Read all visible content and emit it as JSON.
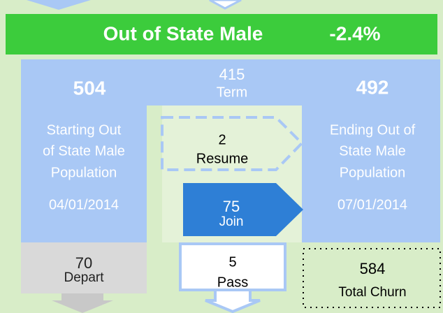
{
  "header": {
    "title": "Out of State Male",
    "change": "-2.4%"
  },
  "start": {
    "value": 504,
    "lines": [
      "Starting Out",
      "of State Male",
      "Population"
    ],
    "date": "04/01/2014"
  },
  "term": {
    "value": 415,
    "label": "Term"
  },
  "end": {
    "value": 492,
    "lines": [
      "Ending Out of",
      "State Male",
      "Population"
    ],
    "date": "07/01/2014"
  },
  "resume": {
    "value": 2,
    "label": "Resume"
  },
  "join": {
    "value": 75,
    "label": "Join"
  },
  "depart": {
    "value": 70,
    "label": "Depart"
  },
  "pass": {
    "value": 5,
    "label": "Pass"
  },
  "churn": {
    "value": 584,
    "label": "Total Churn"
  }
}
